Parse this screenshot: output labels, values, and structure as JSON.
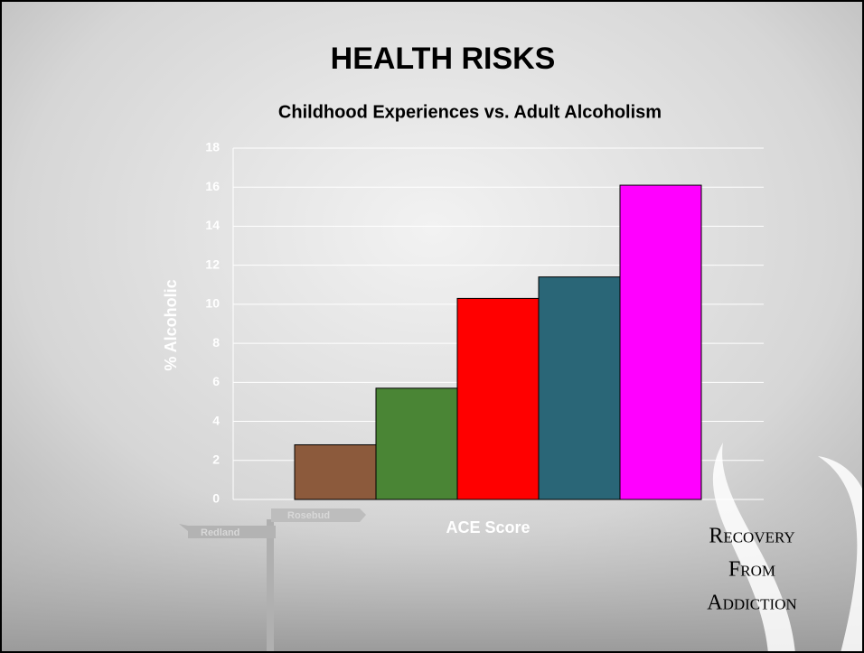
{
  "chart_data": {
    "type": "bar",
    "title": "HEALTH RISKS",
    "subtitle": "Childhood Experiences vs. Adult Alcoholism",
    "x_label": "ACE Score",
    "y_label": "% Alcoholic",
    "categories": [
      null,
      null,
      null,
      null,
      null
    ],
    "values": [
      2.8,
      5.7,
      10.3,
      11.4,
      16.1
    ],
    "colors": [
      "#8c5a3c",
      "#4a8535",
      "#ff0000",
      "#2a6677",
      "#ff00ff"
    ],
    "ylim": [
      0,
      18
    ],
    "yticks": [
      0,
      2,
      4,
      6,
      8,
      10,
      12,
      14,
      16,
      18
    ],
    "grid": true
  },
  "brand": [
    "Recovery",
    "From",
    "Addiction"
  ],
  "background_signs": [
    "Rosebud",
    "Redland"
  ]
}
